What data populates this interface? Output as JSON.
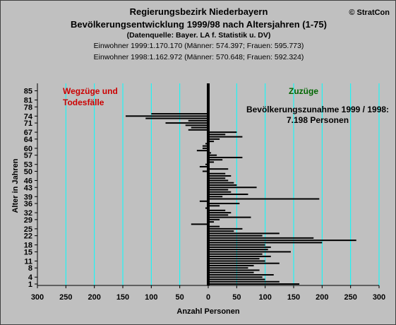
{
  "header": {
    "title_line1": "Regierungsbezirk Niederbayern",
    "title_line2": "Bevölkerungsentwicklung 1999/98 nach Altersjahren (1-75)",
    "source": "(Datenquelle: Bayer. LA f. Statistik u. DV)",
    "info_1999": "Einwohner 1999:1.170.170 (Männer: 574.397; Frauen: 595.773)",
    "info_1998": "Einwohner 1998:1.162.972 (Männer: 570.648; Frauen: 592.324)",
    "copyright": "© StratCon"
  },
  "chart_data": {
    "type": "bar",
    "orientation": "horizontal",
    "xlabel": "Anzahl Personen",
    "ylabel": "Alter in Jahren",
    "xlim": [
      -300,
      300
    ],
    "ylim": [
      0,
      86
    ],
    "x_ticks": [
      -300,
      -250,
      -200,
      -150,
      -100,
      -50,
      0,
      50,
      100,
      150,
      200,
      250,
      300
    ],
    "x_tick_labels": [
      "300",
      "250",
      "200",
      "150",
      "100",
      "50",
      "0",
      "50",
      "100",
      "150",
      "200",
      "250",
      "300"
    ],
    "y_ticks": [
      1,
      4,
      8,
      11,
      15,
      18,
      22,
      25,
      29,
      32,
      36,
      39,
      43,
      46,
      50,
      53,
      57,
      60,
      64,
      67,
      71,
      74,
      78,
      81,
      85
    ],
    "grid": "vertical",
    "annotations": {
      "left_line1": "Wegzüge und",
      "left_line2": "Todesfälle",
      "right": "Zuzüge",
      "summary_line1": "Bevölkerungszunahme 1999 / 1998:",
      "summary_line2": "7.198 Personen"
    },
    "colors": {
      "bars": "#000000",
      "grid": "#00ffff",
      "axis": "#000000",
      "left_label": "#cc0000",
      "right_label": "#006600",
      "background": "#c0c0c0"
    },
    "ages": [
      1,
      2,
      3,
      4,
      5,
      6,
      7,
      8,
      9,
      10,
      11,
      12,
      13,
      14,
      15,
      16,
      17,
      18,
      19,
      20,
      21,
      22,
      23,
      24,
      25,
      26,
      27,
      28,
      29,
      30,
      31,
      32,
      33,
      34,
      35,
      36,
      37,
      38,
      39,
      40,
      41,
      42,
      43,
      44,
      45,
      46,
      47,
      48,
      49,
      50,
      51,
      52,
      53,
      54,
      55,
      56,
      57,
      58,
      59,
      60,
      61,
      62,
      63,
      64,
      65,
      66,
      67,
      68,
      69,
      70,
      71,
      72,
      73,
      74,
      75
    ],
    "values": [
      160,
      125,
      100,
      95,
      115,
      80,
      90,
      70,
      80,
      125,
      100,
      90,
      110,
      95,
      145,
      105,
      110,
      100,
      200,
      260,
      185,
      95,
      125,
      45,
      60,
      20,
      -30,
      10,
      20,
      75,
      35,
      40,
      30,
      -5,
      20,
      55,
      -15,
      195,
      25,
      70,
      40,
      35,
      85,
      50,
      45,
      35,
      30,
      40,
      30,
      -10,
      35,
      -15,
      -5,
      10,
      25,
      60,
      15,
      5,
      -20,
      -10,
      -10,
      -5,
      10,
      20,
      60,
      30,
      50,
      -35,
      -30,
      -40,
      -75,
      -35,
      -110,
      -145,
      -100
    ]
  }
}
